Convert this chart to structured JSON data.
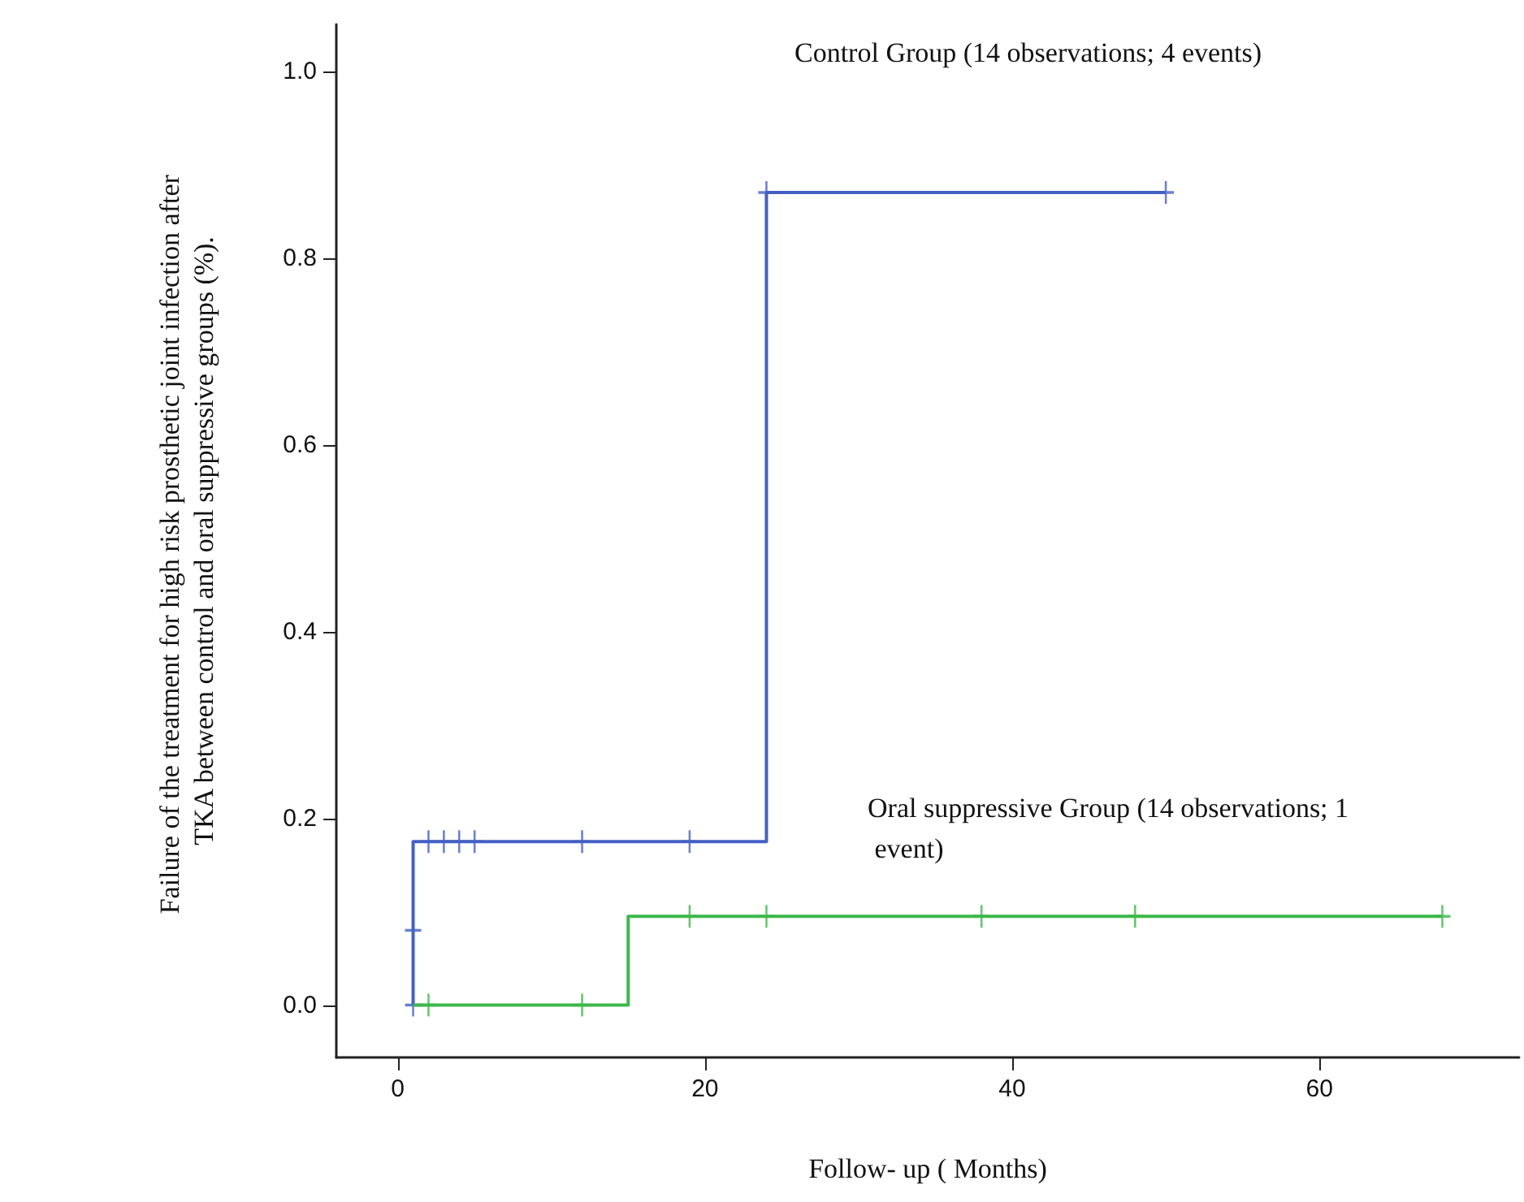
{
  "chart_data": {
    "type": "step",
    "xlabel": "Follow- up ( Months)",
    "ylabel": "Failure of the treatment for high risk prosthetic joint infection after TKA between control and oral suppressive groups (%).",
    "xlim": [
      -4,
      73
    ],
    "xticks": [
      0,
      20,
      40,
      60
    ],
    "ylim": [
      -0.056,
      1.05
    ],
    "yticks": [
      {
        "value": 0,
        "label": "0.0"
      },
      {
        "value": 0.2,
        "label": "0.2"
      },
      {
        "value": 0.4,
        "label": "0.4"
      },
      {
        "value": 0.6,
        "label": "0.6"
      },
      {
        "value": 0.8,
        "label": "0.8"
      },
      {
        "value": 1,
        "label": "1.0"
      }
    ],
    "grid": false,
    "series": [
      {
        "color": "#4460c4",
        "x": [
          1,
          1,
          24,
          50
        ],
        "values": [
          0,
          0.175,
          0.87,
          0.87
        ],
        "marker": "none"
      },
      {
        "color": "#3cb84a",
        "x": [
          1,
          15,
          68
        ],
        "values": [
          0,
          0.095,
          0.095
        ],
        "marker": "none"
      },
      {
        "type": "scatter",
        "color": "#4460c4",
        "x": [
          1,
          1,
          2,
          3,
          4,
          5,
          12,
          19,
          24,
          50
        ],
        "values": [
          0,
          0.08,
          0.175,
          0.175,
          0.175,
          0.175,
          0.175,
          0.175,
          0.87,
          0.87
        ],
        "marker": "cross"
      },
      {
        "type": "scatter",
        "color": "#3cb84a",
        "x": [
          2,
          12,
          19,
          24,
          38,
          48,
          68
        ],
        "values": [
          0,
          0,
          0.095,
          0.095,
          0.095,
          0.095,
          0.095
        ],
        "marker": "cross"
      }
    ],
    "annotations": [
      "Control Group (14 observations; 4 events)",
      "Oral suppressive Group (14 observations; 1 event)"
    ]
  }
}
